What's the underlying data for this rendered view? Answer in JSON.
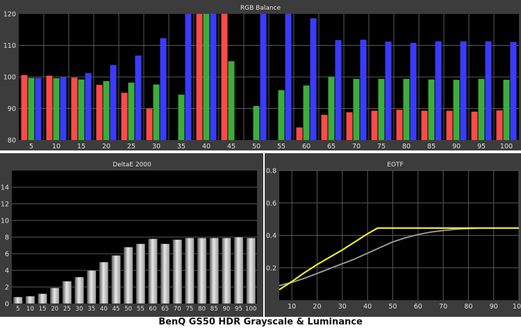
{
  "caption": "BenQ GS50 HDR Grayscale & Luminance",
  "colors": {
    "red": "#ff4a4a",
    "green": "#3cae3c",
    "blue": "#3b3bff",
    "eotf_target": "#999999",
    "eotf_measured": "#f2ee23",
    "panel_bg": "#000000",
    "frame": "#3c3c3c",
    "grid": "#5a5a5a"
  },
  "chart_data": [
    {
      "type": "bar",
      "title": "RGB Balance",
      "categories": [
        "5",
        "10",
        "15",
        "20",
        "25",
        "30",
        "35",
        "40",
        "45",
        "50",
        "55",
        "60",
        "65",
        "70",
        "75",
        "80",
        "85",
        "90",
        "95",
        "100"
      ],
      "ylim": [
        80,
        120
      ],
      "yticks": [
        80,
        90,
        100,
        110,
        120
      ],
      "grid": true,
      "series": [
        {
          "name": "Red",
          "color": "#ff4a4a",
          "values": [
            100.6,
            100.4,
            99.8,
            97.5,
            95.0,
            90.0,
            null,
            123,
            123,
            null,
            null,
            84.0,
            88.0,
            88.8,
            89.3,
            89.6,
            89.3,
            89.3,
            89.0,
            89.4
          ]
        },
        {
          "name": "Green",
          "color": "#3cae3c",
          "values": [
            99.7,
            99.6,
            99.2,
            98.7,
            98.2,
            97.6,
            94.4,
            123,
            105.0,
            90.8,
            95.8,
            97.3,
            100.1,
            99.4,
            99.4,
            99.4,
            99.2,
            99.1,
            99.4,
            99.1
          ]
        },
        {
          "name": "Blue",
          "color": "#3b3bff",
          "values": [
            99.7,
            99.9,
            101.2,
            103.8,
            106.8,
            112.3,
            123,
            123,
            null,
            123,
            123,
            118.6,
            111.7,
            111.8,
            111.2,
            110.8,
            111.3,
            111.3,
            111.3,
            111.1
          ]
        }
      ]
    },
    {
      "type": "bar",
      "title": "DeltaE 2000",
      "categories": [
        "5",
        "10",
        "15",
        "20",
        "25",
        "30",
        "35",
        "40",
        "45",
        "50",
        "55",
        "60",
        "65",
        "70",
        "75",
        "80",
        "85",
        "90",
        "95",
        "100"
      ],
      "values": [
        0.8,
        0.9,
        1.2,
        1.9,
        2.7,
        3.2,
        4.0,
        5.0,
        5.8,
        6.8,
        7.2,
        7.8,
        7.2,
        7.7,
        7.9,
        7.9,
        7.9,
        7.9,
        8.0,
        7.9
      ],
      "ylim": [
        0,
        16
      ],
      "yticks": [
        0,
        2,
        4,
        6,
        8,
        10,
        12,
        14
      ],
      "grid": true
    },
    {
      "type": "line",
      "title": "EOTF",
      "xlim": [
        5,
        100
      ],
      "xticks": [
        10,
        20,
        30,
        40,
        50,
        60,
        70,
        80,
        90,
        100
      ],
      "ylim": [
        0,
        0.8
      ],
      "yticks": [
        0.2,
        0.4,
        0.6,
        0.8
      ],
      "grid": true,
      "series": [
        {
          "role": "target",
          "color": "#999999",
          "x": [
            5,
            10,
            15,
            20,
            25,
            30,
            35,
            40,
            45,
            50,
            55,
            60,
            65,
            70,
            75,
            80,
            85,
            90,
            95,
            100
          ],
          "y": [
            0.09,
            0.11,
            0.135,
            0.165,
            0.195,
            0.225,
            0.255,
            0.29,
            0.325,
            0.36,
            0.385,
            0.405,
            0.42,
            0.43,
            0.438,
            0.442,
            0.445,
            0.445,
            0.445,
            0.445
          ]
        },
        {
          "role": "measured",
          "color": "#f2ee23",
          "x": [
            5,
            10,
            15,
            20,
            25,
            30,
            35,
            40,
            44,
            45,
            50,
            55,
            60,
            65,
            70,
            75,
            80,
            85,
            90,
            95,
            100
          ],
          "y": [
            0.065,
            0.115,
            0.17,
            0.22,
            0.265,
            0.31,
            0.36,
            0.41,
            0.445,
            0.445,
            0.445,
            0.445,
            0.445,
            0.445,
            0.445,
            0.445,
            0.445,
            0.445,
            0.445,
            0.445,
            0.445
          ]
        }
      ]
    }
  ]
}
